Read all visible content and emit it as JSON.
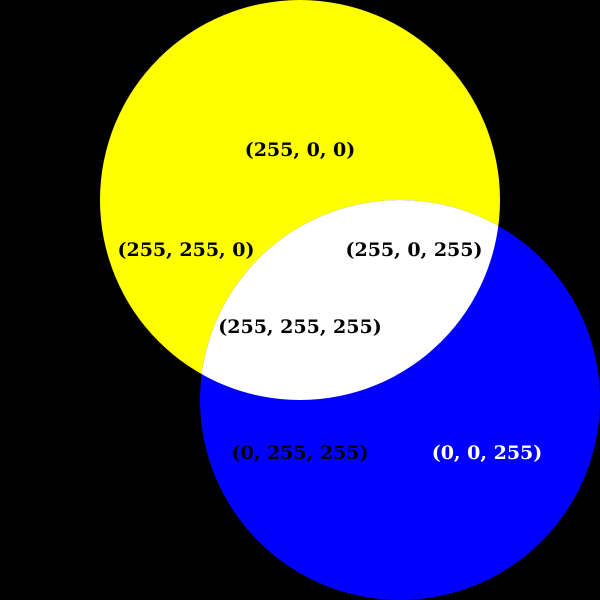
{
  "colors": {
    "background": "#000000",
    "circle_top": "#FFFF00",
    "circle_bottom": "#0000FF",
    "overlap": "#FFFFFF",
    "label_dark": "#000000",
    "label_light": "#FFFFFF"
  },
  "labels": {
    "top_center": "(255, 0, 0)",
    "top_left": "(255, 255, 0)",
    "top_right": "(255, 0, 255)",
    "center": "(255, 255, 255)",
    "bottom_left": "(0, 255, 255)",
    "bottom_right": "(0, 0, 255)"
  }
}
